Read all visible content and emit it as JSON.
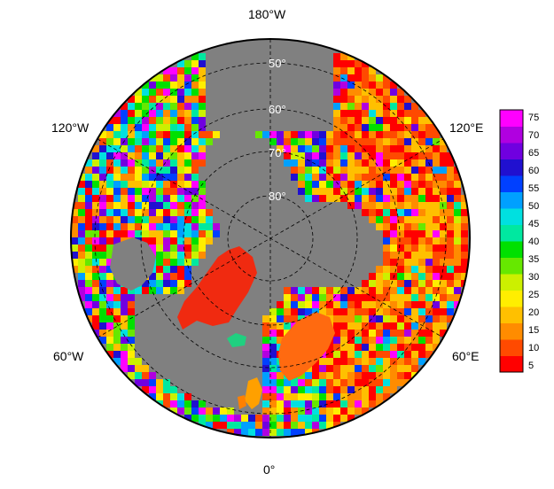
{
  "map": {
    "projection": "north-polar-stereographic",
    "background_color": "#808080",
    "longitude_labels": {
      "top": "180°W",
      "bottom": "0°",
      "upper_left": "120°W",
      "upper_right": "120°E",
      "lower_left": "60°W",
      "lower_right": "60°E"
    },
    "latitude_labels": [
      "50°",
      "60°",
      "70°",
      "80°"
    ]
  },
  "colorbar": {
    "tick_labels": [
      "75",
      "70",
      "65",
      "60",
      "55",
      "50",
      "45",
      "40",
      "35",
      "30",
      "25",
      "20",
      "15",
      "10",
      "5"
    ],
    "colors": [
      "#ff0000",
      "#ff4a00",
      "#ff8c00",
      "#ffc000",
      "#ffee00",
      "#ccf000",
      "#66e800",
      "#00e000",
      "#00e8a0",
      "#00e0e0",
      "#00a0ff",
      "#0040ff",
      "#2010d0",
      "#7000e0",
      "#b000e0",
      "#ff00ff"
    ]
  }
}
